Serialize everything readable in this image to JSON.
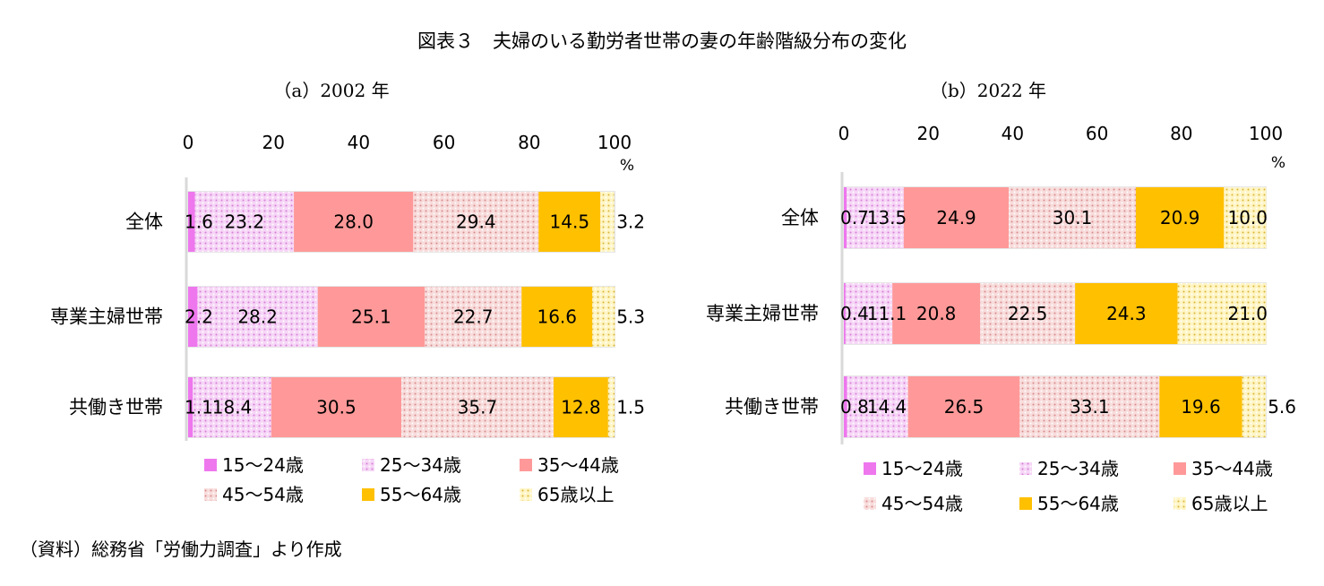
{
  "page": {
    "title": "図表３　夫婦のいる勤労者世帯の妻の年齢階級分布の変化",
    "source": "（資料）総務省「労働力調査」より作成"
  },
  "colors": {
    "15-24": "#ee77ee",
    "25-34": "#f4ccf4",
    "35-44": "#ff9999",
    "45-54": "#f7d6d6",
    "55-64": "#ffc000",
    "65+": "#fff2a8",
    "axis": "#d9d9d9"
  },
  "chart_data": [
    {
      "type": "bar",
      "orientation": "horizontal",
      "stacked": true,
      "title": "（a）2002 年",
      "unit_label": "%",
      "xlim": [
        0,
        100
      ],
      "x_ticks": [
        "0",
        "20",
        "40",
        "60",
        "80",
        "100"
      ],
      "categories": [
        "全体",
        "専業主婦世帯",
        "共働き世帯"
      ],
      "series": [
        {
          "name": "15～24歳",
          "values": [
            1.6,
            2.2,
            1.1
          ],
          "labels": [
            "1.6",
            "2.2",
            "1.1"
          ]
        },
        {
          "name": "25～34歳",
          "values": [
            23.2,
            28.2,
            18.4
          ],
          "labels": [
            "23.2",
            "28.2",
            "18.4"
          ]
        },
        {
          "name": "35～44歳",
          "values": [
            28.0,
            25.1,
            30.5
          ],
          "labels": [
            "28.0",
            "25.1",
            "30.5"
          ]
        },
        {
          "name": "45～54歳",
          "values": [
            29.4,
            22.7,
            35.7
          ],
          "labels": [
            "29.4",
            "22.7",
            "35.7"
          ]
        },
        {
          "name": "55～64歳",
          "values": [
            14.5,
            16.6,
            12.8
          ],
          "labels": [
            "14.5",
            "16.6",
            "12.8"
          ]
        },
        {
          "name": "65歳以上",
          "values": [
            3.2,
            5.3,
            1.5
          ],
          "labels": [
            "3.2",
            "5.3",
            "1.5"
          ]
        }
      ]
    },
    {
      "type": "bar",
      "orientation": "horizontal",
      "stacked": true,
      "title": "（b）2022 年",
      "unit_label": "%",
      "xlim": [
        0,
        100
      ],
      "x_ticks": [
        "0",
        "20",
        "40",
        "60",
        "80",
        "100"
      ],
      "categories": [
        "全体",
        "専業主婦世帯",
        "共働き世帯"
      ],
      "series": [
        {
          "name": "15～24歳",
          "values": [
            0.7,
            0.4,
            0.8
          ],
          "labels": [
            "0.7",
            "0.4",
            "0.8"
          ]
        },
        {
          "name": "25～34歳",
          "values": [
            13.5,
            11.1,
            14.4
          ],
          "labels": [
            "13.5",
            "11.1",
            "14.4"
          ]
        },
        {
          "name": "35～44歳",
          "values": [
            24.9,
            20.8,
            26.5
          ],
          "labels": [
            "24.9",
            "20.8",
            "26.5"
          ]
        },
        {
          "name": "45～54歳",
          "values": [
            30.1,
            22.5,
            33.1
          ],
          "labels": [
            "30.1",
            "22.5",
            "33.1"
          ]
        },
        {
          "name": "55～64歳",
          "values": [
            20.9,
            24.3,
            19.6
          ],
          "labels": [
            "20.9",
            "24.3",
            "19.6"
          ]
        },
        {
          "name": "65歳以上",
          "values": [
            10.0,
            21.0,
            5.6
          ],
          "labels": [
            "10.0",
            "21.0",
            "5.6"
          ]
        }
      ]
    }
  ]
}
